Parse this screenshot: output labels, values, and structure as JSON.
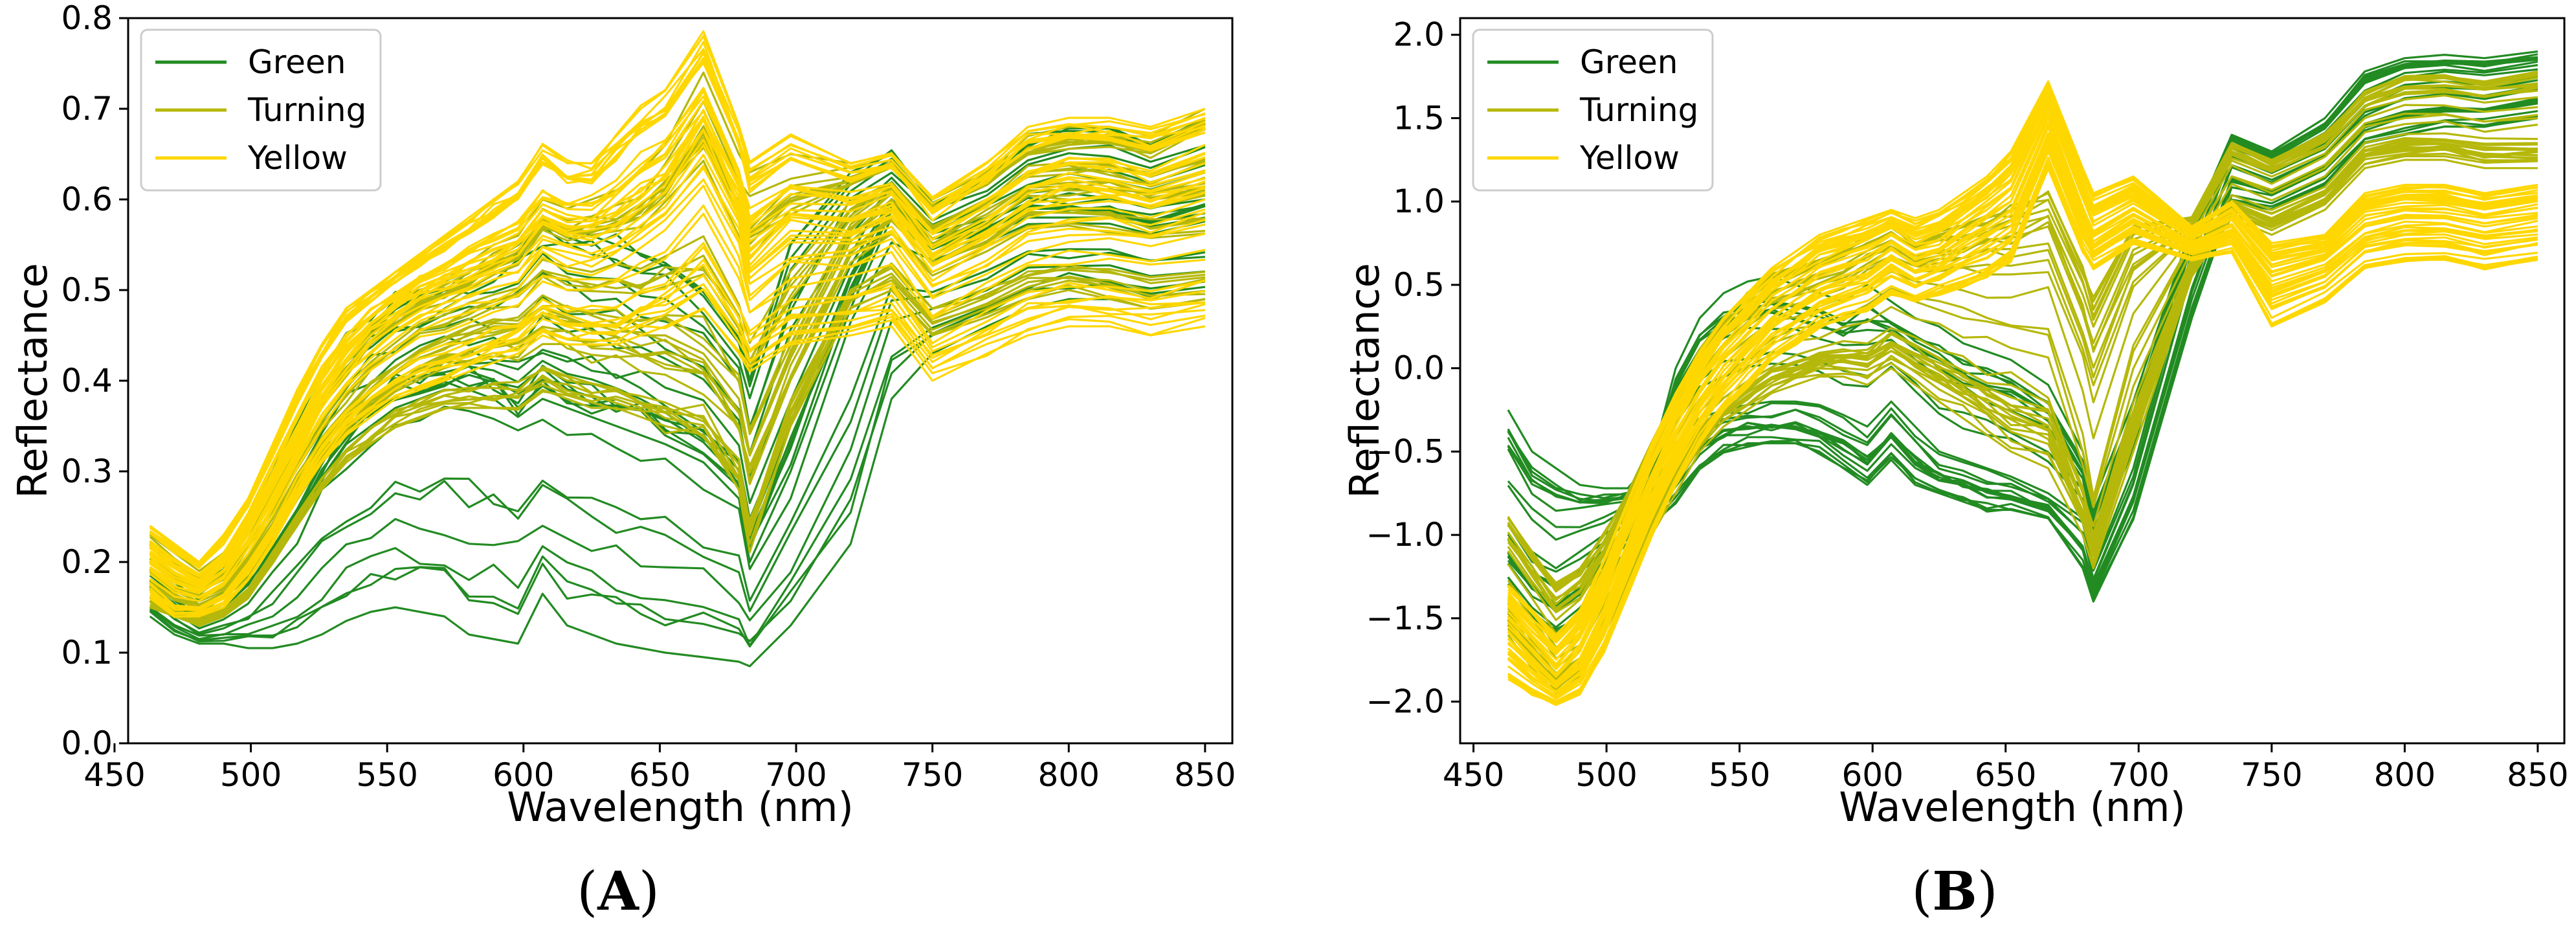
{
  "chart_data": [
    {
      "type": "line",
      "panel_label": {
        "open": "(",
        "letter": "A",
        "close": ")"
      },
      "xlabel": "Wavelength (nm)",
      "ylabel": "Reflectance",
      "xlim": [
        455,
        860
      ],
      "ylim": [
        0.0,
        0.8
      ],
      "xticks": [
        450,
        500,
        550,
        600,
        650,
        700,
        750,
        800,
        850
      ],
      "yticks": [
        0.0,
        0.1,
        0.2,
        0.3,
        0.4,
        0.5,
        0.6,
        0.7,
        0.8
      ],
      "ytick_labels": [
        "0.0",
        "0.1",
        "0.2",
        "0.3",
        "0.4",
        "0.5",
        "0.6",
        "0.7",
        "0.8"
      ],
      "legend": {
        "position": "upper-left",
        "entries": [
          "Green",
          "Turning",
          "Yellow"
        ]
      },
      "x": [
        463,
        472,
        481,
        490,
        499,
        508,
        517,
        526,
        535,
        544,
        553,
        562,
        571,
        580,
        589,
        598,
        607,
        616,
        625,
        634,
        643,
        652,
        666,
        679,
        683,
        698,
        720,
        735,
        750,
        770,
        785,
        800,
        815,
        830,
        850
      ],
      "series": [
        {
          "name": "Green",
          "color": "#228b22",
          "count": 22,
          "typical": [
            0.17,
            0.15,
            0.13,
            0.14,
            0.16,
            0.2,
            0.24,
            0.29,
            0.33,
            0.35,
            0.37,
            0.38,
            0.39,
            0.39,
            0.38,
            0.36,
            0.38,
            0.37,
            0.36,
            0.35,
            0.34,
            0.33,
            0.31,
            0.27,
            0.2,
            0.3,
            0.48,
            0.58,
            0.54,
            0.56,
            0.58,
            0.58,
            0.58,
            0.57,
            0.58
          ],
          "low": [
            0.14,
            0.12,
            0.11,
            0.11,
            0.105,
            0.105,
            0.11,
            0.12,
            0.135,
            0.145,
            0.15,
            0.145,
            0.14,
            0.12,
            0.115,
            0.11,
            0.165,
            0.13,
            0.12,
            0.11,
            0.105,
            0.1,
            0.095,
            0.09,
            0.085,
            0.13,
            0.22,
            0.38,
            0.43,
            0.46,
            0.48,
            0.49,
            0.49,
            0.48,
            0.49
          ],
          "high": [
            0.22,
            0.2,
            0.18,
            0.2,
            0.25,
            0.3,
            0.36,
            0.41,
            0.45,
            0.47,
            0.49,
            0.5,
            0.51,
            0.52,
            0.53,
            0.54,
            0.58,
            0.57,
            0.56,
            0.55,
            0.54,
            0.53,
            0.5,
            0.45,
            0.4,
            0.55,
            0.63,
            0.65,
            0.6,
            0.63,
            0.67,
            0.68,
            0.68,
            0.66,
            0.69
          ]
        },
        {
          "name": "Turning",
          "color": "#b5b80a",
          "count": 32,
          "typical": [
            0.19,
            0.17,
            0.16,
            0.17,
            0.2,
            0.24,
            0.29,
            0.33,
            0.36,
            0.39,
            0.41,
            0.43,
            0.44,
            0.45,
            0.46,
            0.46,
            0.48,
            0.47,
            0.46,
            0.46,
            0.45,
            0.45,
            0.43,
            0.38,
            0.32,
            0.43,
            0.56,
            0.6,
            0.55,
            0.58,
            0.61,
            0.61,
            0.61,
            0.6,
            0.61
          ],
          "low": [
            0.15,
            0.14,
            0.13,
            0.14,
            0.16,
            0.2,
            0.24,
            0.28,
            0.31,
            0.33,
            0.35,
            0.36,
            0.37,
            0.37,
            0.37,
            0.37,
            0.39,
            0.38,
            0.37,
            0.37,
            0.36,
            0.35,
            0.34,
            0.28,
            0.22,
            0.35,
            0.48,
            0.5,
            0.45,
            0.47,
            0.49,
            0.5,
            0.49,
            0.48,
            0.49
          ],
          "high": [
            0.23,
            0.21,
            0.19,
            0.21,
            0.25,
            0.3,
            0.35,
            0.39,
            0.43,
            0.46,
            0.48,
            0.5,
            0.51,
            0.53,
            0.55,
            0.56,
            0.6,
            0.59,
            0.6,
            0.61,
            0.63,
            0.66,
            0.74,
            0.65,
            0.63,
            0.65,
            0.64,
            0.65,
            0.6,
            0.63,
            0.67,
            0.68,
            0.68,
            0.67,
            0.7
          ]
        },
        {
          "name": "Yellow",
          "color": "#ffd700",
          "count": 40,
          "typical": [
            0.2,
            0.18,
            0.17,
            0.19,
            0.23,
            0.28,
            0.33,
            0.38,
            0.42,
            0.45,
            0.47,
            0.49,
            0.5,
            0.51,
            0.52,
            0.53,
            0.56,
            0.55,
            0.55,
            0.56,
            0.58,
            0.6,
            0.66,
            0.58,
            0.52,
            0.56,
            0.56,
            0.58,
            0.52,
            0.55,
            0.58,
            0.59,
            0.59,
            0.58,
            0.6
          ],
          "low": [
            0.16,
            0.14,
            0.14,
            0.15,
            0.18,
            0.22,
            0.27,
            0.31,
            0.34,
            0.36,
            0.38,
            0.39,
            0.4,
            0.41,
            0.42,
            0.43,
            0.45,
            0.44,
            0.44,
            0.44,
            0.45,
            0.46,
            0.48,
            0.43,
            0.41,
            0.44,
            0.45,
            0.46,
            0.4,
            0.43,
            0.45,
            0.46,
            0.46,
            0.45,
            0.46
          ],
          "high": [
            0.24,
            0.22,
            0.2,
            0.23,
            0.27,
            0.33,
            0.39,
            0.44,
            0.48,
            0.5,
            0.52,
            0.54,
            0.56,
            0.58,
            0.6,
            0.62,
            0.66,
            0.64,
            0.64,
            0.67,
            0.7,
            0.72,
            0.78,
            0.68,
            0.64,
            0.67,
            0.64,
            0.65,
            0.6,
            0.64,
            0.68,
            0.69,
            0.69,
            0.68,
            0.7
          ]
        }
      ]
    },
    {
      "type": "line",
      "panel_label": {
        "open": "(",
        "letter": "B",
        "close": ")"
      },
      "xlabel": "Wavelength (nm)",
      "ylabel": "Reflectance",
      "xlim": [
        445,
        860
      ],
      "ylim": [
        -2.25,
        2.1
      ],
      "xticks": [
        450,
        500,
        550,
        600,
        650,
        700,
        750,
        800,
        850
      ],
      "yticks": [
        -2.0,
        -1.5,
        -1.0,
        -0.5,
        0.0,
        0.5,
        1.0,
        1.5,
        2.0
      ],
      "ytick_labels": [
        "−2.0",
        "−1.5",
        "−1.0",
        "−0.5",
        "0.0",
        "0.5",
        "1.0",
        "1.5",
        "2.0"
      ],
      "legend": {
        "position": "upper-left",
        "entries": [
          "Green",
          "Turning",
          "Yellow"
        ]
      },
      "x": [
        463,
        472,
        481,
        490,
        499,
        508,
        517,
        526,
        535,
        544,
        553,
        562,
        571,
        580,
        589,
        598,
        607,
        616,
        625,
        634,
        643,
        652,
        666,
        679,
        683,
        698,
        720,
        735,
        750,
        770,
        785,
        800,
        815,
        830,
        850
      ],
      "series": [
        {
          "name": "Green",
          "color": "#228b22",
          "count": 22,
          "typical": [
            -0.9,
            -1.1,
            -1.2,
            -1.1,
            -1.0,
            -0.9,
            -0.65,
            -0.45,
            -0.3,
            -0.25,
            -0.22,
            -0.2,
            -0.2,
            -0.22,
            -0.28,
            -0.35,
            -0.2,
            -0.35,
            -0.5,
            -0.55,
            -0.6,
            -0.65,
            -0.75,
            -0.9,
            -1.2,
            -0.6,
            0.7,
            1.3,
            1.2,
            1.35,
            1.6,
            1.7,
            1.72,
            1.7,
            1.75
          ],
          "low": [
            -1.3,
            -1.5,
            -1.6,
            -1.5,
            -1.3,
            -1.1,
            -0.95,
            -0.8,
            -0.6,
            -0.5,
            -0.45,
            -0.45,
            -0.45,
            -0.5,
            -0.6,
            -0.7,
            -0.55,
            -0.7,
            -0.75,
            -0.8,
            -0.85,
            -0.85,
            -0.9,
            -1.2,
            -1.4,
            -0.9,
            0.3,
            1.0,
            0.95,
            1.1,
            1.35,
            1.4,
            1.45,
            1.45,
            1.5
          ],
          "high": [
            -0.25,
            -0.5,
            -0.6,
            -0.7,
            -0.72,
            -0.72,
            -0.55,
            0.0,
            0.3,
            0.45,
            0.52,
            0.55,
            0.5,
            0.45,
            0.4,
            0.5,
            0.4,
            0.3,
            0.25,
            0.15,
            0.1,
            0.05,
            -0.1,
            -0.5,
            -0.8,
            -0.2,
            0.85,
            1.4,
            1.3,
            1.5,
            1.78,
            1.86,
            1.88,
            1.86,
            1.9
          ]
        },
        {
          "name": "Turning",
          "color": "#b5b80a",
          "count": 32,
          "typical": [
            -1.3,
            -1.5,
            -1.7,
            -1.6,
            -1.3,
            -1.0,
            -0.7,
            -0.4,
            -0.2,
            -0.05,
            0.05,
            0.15,
            0.2,
            0.25,
            0.3,
            0.35,
            0.45,
            0.4,
            0.35,
            0.3,
            0.28,
            0.25,
            0.2,
            -0.5,
            -0.8,
            0.1,
            0.75,
            1.15,
            1.05,
            1.2,
            1.45,
            1.5,
            1.52,
            1.48,
            1.5
          ],
          "low": [
            -1.6,
            -1.8,
            -1.95,
            -1.85,
            -1.6,
            -1.3,
            -1.0,
            -0.75,
            -0.5,
            -0.35,
            -0.25,
            -0.15,
            -0.1,
            -0.05,
            -0.05,
            -0.1,
            0.0,
            -0.1,
            -0.2,
            -0.3,
            -0.4,
            -0.5,
            -0.6,
            -1.0,
            -1.2,
            -0.5,
            0.55,
            0.9,
            0.8,
            0.95,
            1.2,
            1.25,
            1.25,
            1.2,
            1.2
          ],
          "high": [
            -0.9,
            -1.1,
            -1.3,
            -1.2,
            -1.0,
            -0.75,
            -0.45,
            -0.15,
            0.1,
            0.3,
            0.45,
            0.55,
            0.6,
            0.65,
            0.7,
            0.8,
            0.85,
            0.75,
            0.8,
            0.85,
            0.9,
            0.95,
            1.05,
            0.6,
            0.4,
            0.85,
            0.9,
            1.35,
            1.25,
            1.4,
            1.65,
            1.75,
            1.75,
            1.72,
            1.78
          ]
        },
        {
          "name": "Yellow",
          "color": "#ffd700",
          "count": 40,
          "typical": [
            -1.55,
            -1.7,
            -1.85,
            -1.7,
            -1.4,
            -1.05,
            -0.7,
            -0.4,
            -0.15,
            0.05,
            0.2,
            0.35,
            0.45,
            0.55,
            0.6,
            0.65,
            0.75,
            0.65,
            0.7,
            0.8,
            0.9,
            1.0,
            1.5,
            0.95,
            0.8,
            0.95,
            0.75,
            0.85,
            0.55,
            0.65,
            0.85,
            0.9,
            0.9,
            0.85,
            0.9
          ],
          "low": [
            -1.85,
            -1.95,
            -2.02,
            -1.95,
            -1.7,
            -1.35,
            -1.0,
            -0.7,
            -0.45,
            -0.25,
            -0.1,
            0.05,
            0.15,
            0.25,
            0.3,
            0.35,
            0.45,
            0.4,
            0.45,
            0.5,
            0.55,
            0.65,
            1.2,
            0.7,
            0.6,
            0.75,
            0.65,
            0.7,
            0.25,
            0.4,
            0.6,
            0.65,
            0.65,
            0.6,
            0.65
          ],
          "high": [
            -1.3,
            -1.45,
            -1.6,
            -1.45,
            -1.15,
            -0.8,
            -0.45,
            -0.15,
            0.1,
            0.3,
            0.45,
            0.6,
            0.7,
            0.8,
            0.85,
            0.9,
            0.95,
            0.9,
            0.95,
            1.05,
            1.15,
            1.3,
            1.72,
            1.2,
            1.05,
            1.15,
            0.85,
            1.0,
            0.75,
            0.8,
            1.05,
            1.1,
            1.1,
            1.05,
            1.1
          ]
        }
      ]
    }
  ]
}
